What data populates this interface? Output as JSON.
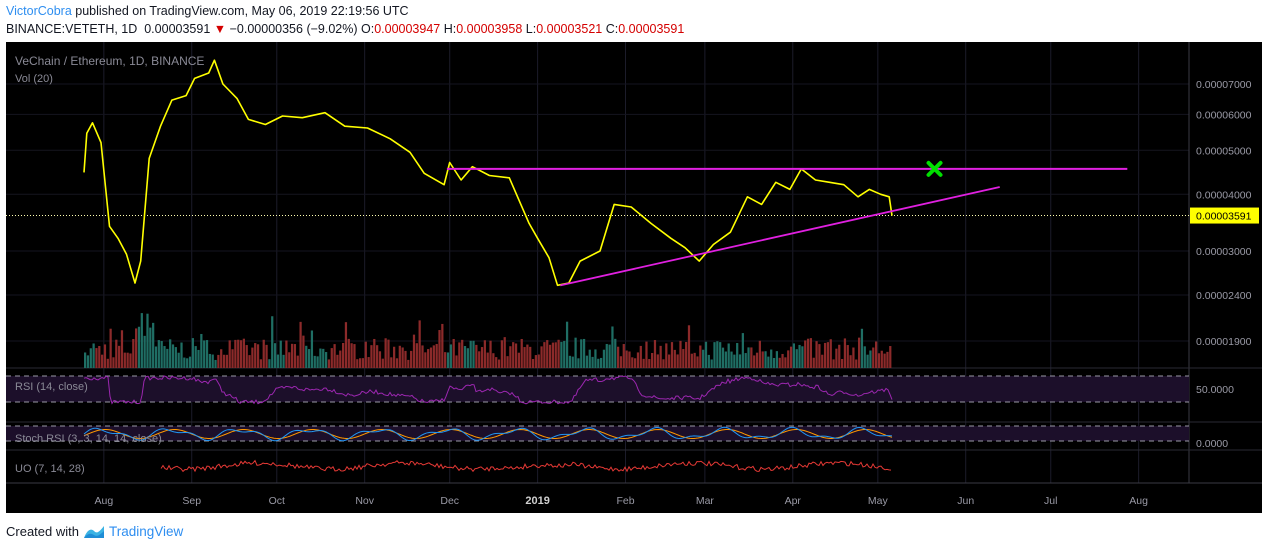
{
  "header": {
    "author": "VictorCobra",
    "published_text": "published on TradingView.com, May 06, 2019 22:19:56 UTC",
    "symbol": "BINANCE:VETETH, 1D",
    "last_price": "0.00003591",
    "change_arrow": "▼",
    "change": "−0.00000356 (−9.02%)",
    "o_label": "O:",
    "o_value": "0.00003947",
    "h_label": "H:",
    "h_value": "0.00003958",
    "l_label": "L:",
    "l_value": "0.00003521",
    "c_label": "C:",
    "c_value": "0.00003591"
  },
  "footer": {
    "created_with": "Created with",
    "brand": "TradingView"
  },
  "colors": {
    "price_line": "#ffff00",
    "trend_lines": "#e020e0",
    "target_marker": "#00e000",
    "vol_up": "#1f6e64",
    "vol_down": "#8c2a2a",
    "rsi": "#9c27b0",
    "stoch_k": "#2196f3",
    "stoch_d": "#ff9800",
    "uo": "#e53935",
    "price_label_bg": "#ffff00"
  },
  "chart_data": {
    "type": "line",
    "title": "VeChain / Ethereum, 1D, BINANCE",
    "volume_label": "Vol (20)",
    "y_scale": "log",
    "y_ticks": [
      "0.00007000",
      "0.00006000",
      "0.00005000",
      "0.00004000",
      "0.00003000",
      "0.00002400",
      "0.00001900"
    ],
    "last_price_label": "0.00003591",
    "x_ticks": [
      "Aug",
      "Sep",
      "Oct",
      "Nov",
      "Dec",
      "2019",
      "Feb",
      "Mar",
      "Apr",
      "May",
      "Jun",
      "Jul",
      "Aug"
    ],
    "series": [
      {
        "values": [
          [
            "2018-07-25",
            4.47e-05
          ],
          [
            "2018-07-26",
            5.45e-05
          ],
          [
            "2018-07-28",
            5.75e-05
          ],
          [
            "2018-07-31",
            5.2e-05
          ],
          [
            "2018-08-03",
            3.4e-05
          ],
          [
            "2018-08-06",
            3.2e-05
          ],
          [
            "2018-08-09",
            2.95e-05
          ],
          [
            "2018-08-12",
            2.55e-05
          ],
          [
            "2018-08-14",
            2.85e-05
          ],
          [
            "2018-08-17",
            4.8e-05
          ],
          [
            "2018-08-21",
            5.65e-05
          ],
          [
            "2018-08-25",
            6.45e-05
          ],
          [
            "2018-08-30",
            6.6e-05
          ],
          [
            "2018-09-02",
            7.2e-05
          ],
          [
            "2018-09-07",
            7.4e-05
          ],
          [
            "2018-09-09",
            7.9e-05
          ],
          [
            "2018-09-12",
            7e-05
          ],
          [
            "2018-09-17",
            6.5e-05
          ],
          [
            "2018-09-21",
            5.85e-05
          ],
          [
            "2018-09-27",
            5.7e-05
          ],
          [
            "2018-10-03",
            5.95e-05
          ],
          [
            "2018-10-10",
            5.9e-05
          ],
          [
            "2018-10-18",
            6.05e-05
          ],
          [
            "2018-10-25",
            5.65e-05
          ],
          [
            "2018-11-02",
            5.6e-05
          ],
          [
            "2018-11-10",
            5.3e-05
          ],
          [
            "2018-11-17",
            4.95e-05
          ],
          [
            "2018-11-22",
            4.45e-05
          ],
          [
            "2018-11-29",
            4.2e-05
          ],
          [
            "2018-12-01",
            4.7e-05
          ],
          [
            "2018-12-05",
            4.3e-05
          ],
          [
            "2018-12-09",
            4.6e-05
          ],
          [
            "2018-12-15",
            4.4e-05
          ],
          [
            "2018-12-22",
            4.35e-05
          ],
          [
            "2018-12-29",
            3.45e-05
          ],
          [
            "2019-01-01",
            3.2e-05
          ],
          [
            "2019-01-05",
            2.9e-05
          ],
          [
            "2019-01-08",
            2.52e-05
          ],
          [
            "2019-01-12",
            2.55e-05
          ],
          [
            "2019-01-16",
            2.85e-05
          ],
          [
            "2019-01-23",
            3e-05
          ],
          [
            "2019-01-28",
            3.8e-05
          ],
          [
            "2019-02-03",
            3.75e-05
          ],
          [
            "2019-02-10",
            3.45e-05
          ],
          [
            "2019-02-17",
            3.2e-05
          ],
          [
            "2019-02-22",
            3.05e-05
          ],
          [
            "2019-02-27",
            2.85e-05
          ],
          [
            "2019-03-04",
            3.1e-05
          ],
          [
            "2019-03-10",
            3.3e-05
          ],
          [
            "2019-03-16",
            3.95e-05
          ],
          [
            "2019-03-21",
            3.8e-05
          ],
          [
            "2019-03-26",
            4.25e-05
          ],
          [
            "2019-03-31",
            4.1e-05
          ],
          [
            "2019-04-04",
            4.55e-05
          ],
          [
            "2019-04-09",
            4.3e-05
          ],
          [
            "2019-04-14",
            4.25e-05
          ],
          [
            "2019-04-19",
            4.2e-05
          ],
          [
            "2019-04-24",
            3.95e-05
          ],
          [
            "2019-04-28",
            4.1e-05
          ],
          [
            "2019-05-02",
            4e-05
          ],
          [
            "2019-05-05",
            3.95e-05
          ],
          [
            "2019-05-06",
            3.59e-05
          ]
        ]
      }
    ],
    "annotations": {
      "resistance": [
        [
          "2018-11-30",
          4.55e-05
        ],
        [
          "2019-07-28",
          4.55e-05
        ]
      ],
      "rising_support": [
        [
          "2019-01-09",
          2.52e-05
        ],
        [
          "2019-06-13",
          4.15e-05
        ]
      ],
      "target_marker_date": "2019-05-21",
      "target_marker_value": 4.55e-05
    },
    "indicators": [
      {
        "name": "RSI (14, close)",
        "level_label": "50.0000"
      },
      {
        "name": "Stoch RSI (3, 3, 14, 14, close)",
        "level_label": "0.0000"
      },
      {
        "name": "UO (7, 14, 28)"
      }
    ]
  }
}
